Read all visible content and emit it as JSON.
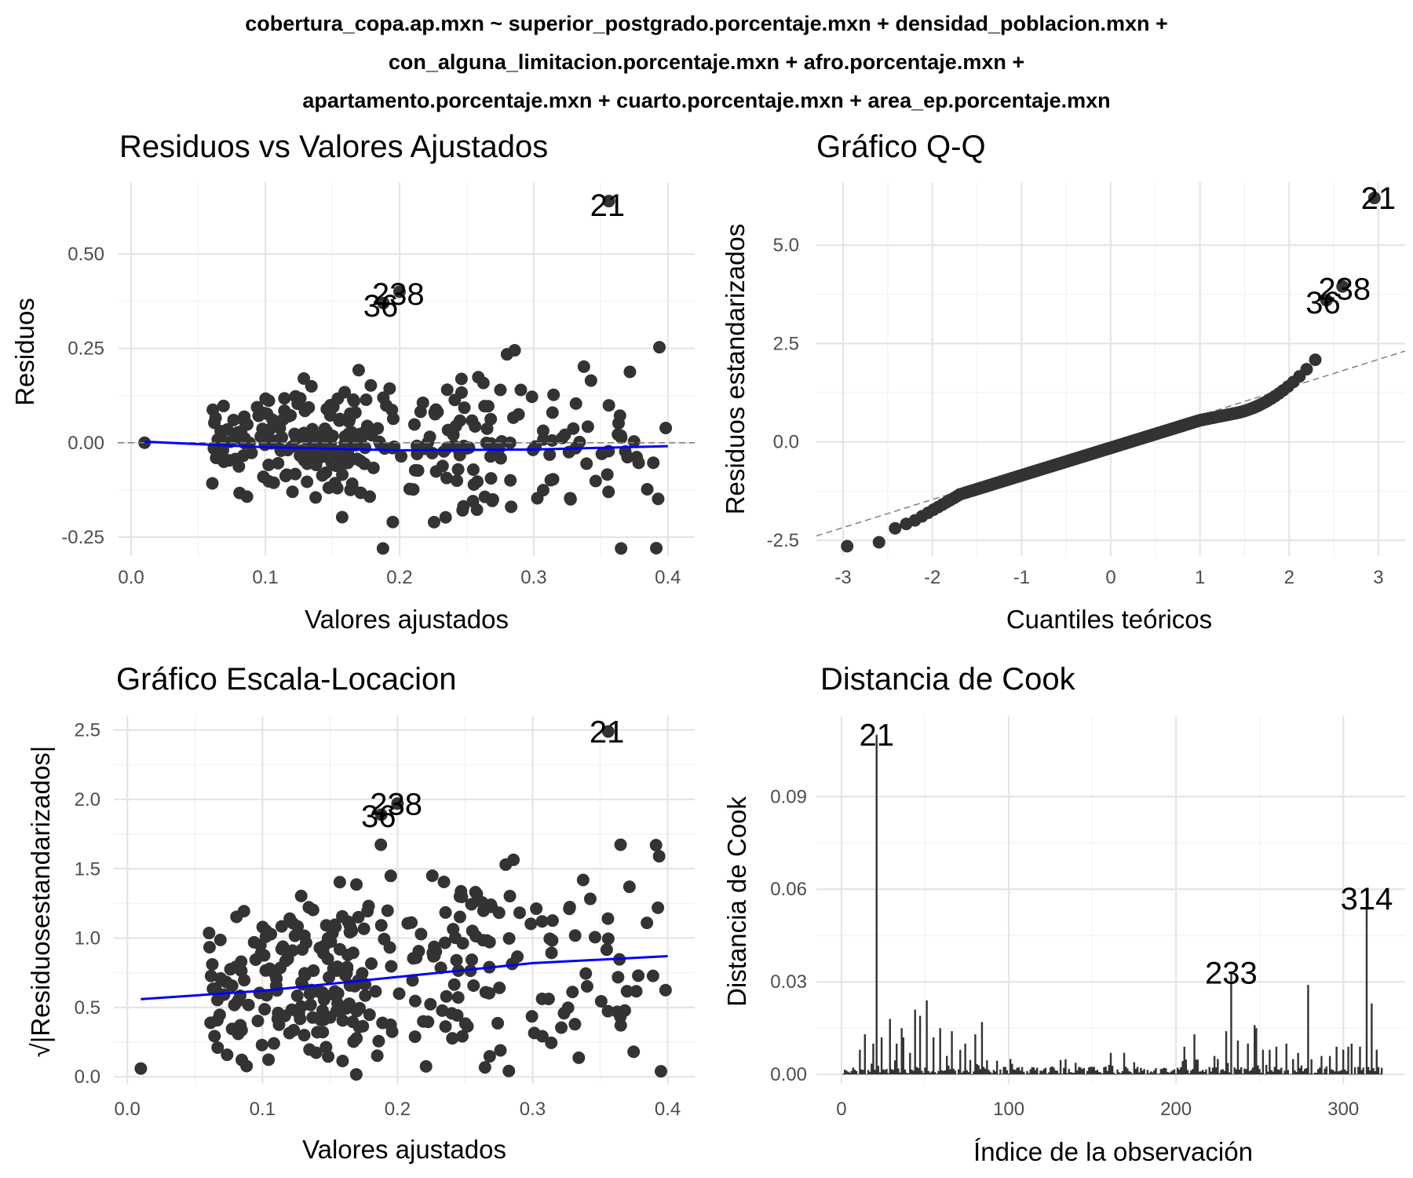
{
  "suptitle": [
    "cobertura_copa.ap.mxn ~ superior_postgrado.porcentaje.mxn + densidad_poblacion.mxn +",
    "con_alguna_limitacion.porcentaje.mxn + afro.porcentaje.mxn +",
    "apartamento.porcentaje.mxn + cuarto.porcentaje.mxn + area_ep.porcentaje.mxn"
  ],
  "colors": {
    "points": "#333333",
    "smooth": "#0000ff",
    "refline": "#808080",
    "bars": "#333333"
  },
  "chart_data": [
    {
      "id": "resid",
      "type": "scatter",
      "title": "Residuos vs Valores Ajustados",
      "xlabel": "Valores ajustados",
      "ylabel": "Residuos",
      "xlim": [
        -0.01,
        0.42
      ],
      "ylim": [
        -0.3,
        0.69
      ],
      "xticks": [
        0.0,
        0.1,
        0.2,
        0.3,
        0.4
      ],
      "xticklabels": [
        "0.0",
        "0.1",
        "0.2",
        "0.3",
        "0.4"
      ],
      "yticks": [
        -0.25,
        0.0,
        0.25,
        0.5
      ],
      "yticklabels": [
        "-0.25",
        "0.00",
        "0.25",
        "0.50"
      ],
      "grid": true,
      "hline": 0,
      "smooth": {
        "x": [
          0.01,
          0.1,
          0.2,
          0.3,
          0.4
        ],
        "y": [
          0.003,
          -0.012,
          -0.02,
          -0.018,
          -0.009
        ]
      },
      "labels": [
        {
          "text": "21",
          "x": 0.355,
          "y": 0.63
        },
        {
          "text": "238",
          "x": 0.199,
          "y": 0.395
        },
        {
          "text": "36",
          "x": 0.186,
          "y": 0.363
        }
      ]
    },
    {
      "id": "qq",
      "type": "scatter",
      "title": "Gráfico Q-Q",
      "xlabel": "Cuantiles teóricos",
      "ylabel": "Residuos estandarizados",
      "xlim": [
        -3.3,
        3.3
      ],
      "ylim": [
        -2.9,
        6.6
      ],
      "xticks": [
        -3,
        -2,
        -1,
        0,
        1,
        2,
        3
      ],
      "xticklabels": [
        "-3",
        "-2",
        "-1",
        "0",
        "1",
        "2",
        "3"
      ],
      "yticks": [
        -2.5,
        0,
        2.5,
        5
      ],
      "yticklabels": [
        "-2.5",
        "0.0",
        "2.5",
        "5.0"
      ],
      "grid": true,
      "refline": {
        "x": [
          -3.3,
          3.3
        ],
        "y": [
          -2.39,
          2.31
        ]
      },
      "labels": [
        {
          "text": "21",
          "x": 3.0,
          "y": 6.2
        },
        {
          "text": "238",
          "x": 2.62,
          "y": 3.9
        },
        {
          "text": "36",
          "x": 2.38,
          "y": 3.55
        }
      ]
    },
    {
      "id": "scale",
      "type": "scatter",
      "title": "Gráfico Escala-Locacion",
      "xlabel": "Valores ajustados",
      "ylabel": "√|Residuosestandarizados|",
      "xlim": [
        -0.01,
        0.42
      ],
      "ylim": [
        -0.05,
        2.6
      ],
      "xticks": [
        0.0,
        0.1,
        0.2,
        0.3,
        0.4
      ],
      "xticklabels": [
        "0.0",
        "0.1",
        "0.2",
        "0.3",
        "0.4"
      ],
      "yticks": [
        0.0,
        0.5,
        1.0,
        1.5,
        2.0,
        2.5
      ],
      "yticklabels": [
        "0.0",
        "0.5",
        "1.0",
        "1.5",
        "2.0",
        "2.5"
      ],
      "grid": true,
      "smooth": {
        "x": [
          0.01,
          0.1,
          0.2,
          0.3,
          0.4
        ],
        "y": [
          0.56,
          0.62,
          0.72,
          0.82,
          0.87
        ]
      },
      "labels": [
        {
          "text": "21",
          "x": 0.355,
          "y": 2.49
        },
        {
          "text": "238",
          "x": 0.199,
          "y": 1.97
        },
        {
          "text": "36",
          "x": 0.186,
          "y": 1.88
        }
      ]
    },
    {
      "id": "cook",
      "type": "bar",
      "title": "Distancia de Cook",
      "xlabel": "Índice de la observación",
      "ylabel": "Distancia de Cook",
      "xlim": [
        -15,
        337
      ],
      "ylim": [
        -0.003,
        0.116
      ],
      "xticks": [
        0,
        100,
        200,
        300
      ],
      "xticklabels": [
        "0",
        "100",
        "200",
        "300"
      ],
      "yticks": [
        0.0,
        0.03,
        0.06,
        0.09
      ],
      "yticklabels": [
        "0.00",
        "0.03",
        "0.06",
        "0.09"
      ],
      "grid": true,
      "spikes": [
        [
          21,
          0.11
        ],
        [
          314,
          0.057
        ],
        [
          233,
          0.033
        ],
        [
          279,
          0.029
        ],
        [
          317,
          0.023
        ],
        [
          51,
          0.024
        ],
        [
          44,
          0.021
        ],
        [
          47,
          0.019
        ],
        [
          29,
          0.018
        ],
        [
          14,
          0.013
        ],
        [
          36,
          0.015
        ],
        [
          59,
          0.015
        ],
        [
          66,
          0.014
        ],
        [
          84,
          0.017
        ],
        [
          80,
          0.013
        ],
        [
          230,
          0.014
        ],
        [
          247,
          0.016
        ],
        [
          248,
          0.015
        ],
        [
          266,
          0.01
        ],
        [
          211,
          0.013
        ],
        [
          205,
          0.009
        ],
        [
          169,
          0.007
        ],
        [
          161,
          0.007
        ],
        [
          305,
          0.01
        ],
        [
          310,
          0.009
        ],
        [
          300,
          0.008
        ],
        [
          24,
          0.012
        ],
        [
          55,
          0.012
        ],
        [
          11,
          0.008
        ],
        [
          33,
          0.01
        ],
        [
          19,
          0.01
        ],
        [
          71,
          0.008
        ],
        [
          74,
          0.01
        ],
        [
          237,
          0.011
        ],
        [
          243,
          0.01
        ],
        [
          252,
          0.008
        ],
        [
          256,
          0.008
        ],
        [
          260,
          0.009
        ],
        [
          320,
          0.008
        ],
        [
          296,
          0.009
        ],
        [
          303,
          0.009
        ],
        [
          292,
          0.006
        ],
        [
          287,
          0.006
        ],
        [
          270,
          0.005
        ],
        [
          273,
          0.007
        ],
        [
          223,
          0.006
        ],
        [
          225,
          0.005
        ],
        [
          37,
          0.012
        ],
        [
          63,
          0.006
        ],
        [
          41,
          0.007
        ]
      ],
      "n": 323,
      "labels": [
        {
          "text": "21",
          "x": 21,
          "y": 0.11
        },
        {
          "text": "233",
          "x": 233,
          "y": 0.033
        },
        {
          "text": "314",
          "x": 314,
          "y": 0.057
        }
      ]
    }
  ]
}
